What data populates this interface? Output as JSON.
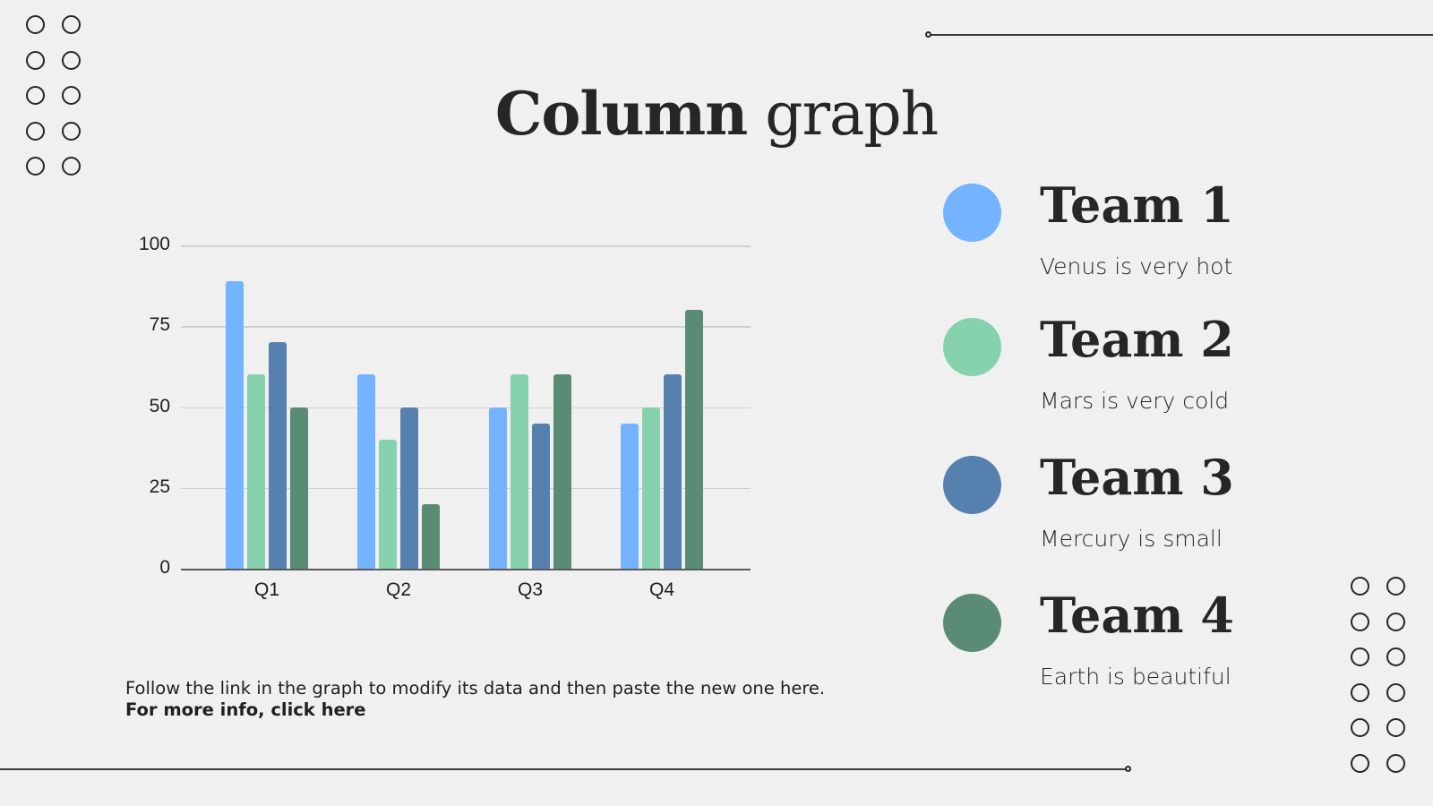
{
  "slide": {
    "title_bold": "Column",
    "title_regular": "graph",
    "background": "#f0f0f0",
    "note_text": "Follow the link in the graph to modify its data and then paste the new one here.",
    "note_link": "For more info, click here"
  },
  "legend": [
    {
      "title": "Team 1",
      "desc": "Venus is very hot",
      "color": "#74b3ff"
    },
    {
      "title": "Team 2",
      "desc": "Mars is very cold",
      "color": "#87d2ae"
    },
    {
      "title": "Team 3",
      "desc": "Mercury is small",
      "color": "#5680ae"
    },
    {
      "title": "Team 4",
      "desc": "Earth is beautiful",
      "color": "#5a8b74"
    }
  ],
  "chart_data": {
    "type": "bar",
    "title": "",
    "xlabel": "",
    "ylabel": "",
    "categories": [
      "Q1",
      "Q2",
      "Q3",
      "Q4"
    ],
    "series": [
      {
        "name": "Team 1",
        "color": "#74b3ff",
        "values": [
          89,
          60,
          50,
          45
        ]
      },
      {
        "name": "Team 2",
        "color": "#87d2ae",
        "values": [
          60,
          40,
          60,
          50
        ]
      },
      {
        "name": "Team 3",
        "color": "#5680ae",
        "values": [
          70,
          50,
          45,
          60
        ]
      },
      {
        "name": "Team 4",
        "color": "#5a8b74",
        "values": [
          50,
          20,
          60,
          80
        ]
      }
    ],
    "yticks": [
      "0",
      "25",
      "50",
      "75",
      "100"
    ],
    "ylim": [
      0,
      100
    ],
    "grid": true,
    "legend_position": "right"
  }
}
